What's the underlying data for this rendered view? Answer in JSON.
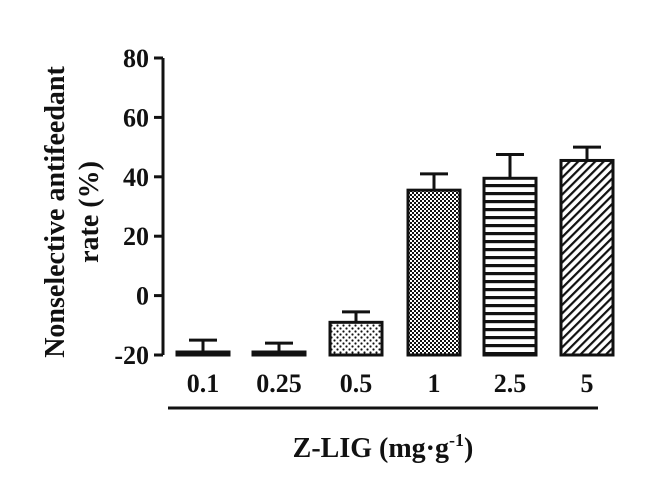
{
  "chart_data": {
    "type": "bar",
    "categories": [
      "0.1",
      "0.25",
      "0.5",
      "1",
      "2.5",
      "5"
    ],
    "values": [
      -19.5,
      -19.0,
      -9.0,
      35.5,
      39.5,
      45.5
    ],
    "error": [
      4.5,
      3.0,
      3.5,
      5.5,
      8.0,
      4.5
    ],
    "ylim": [
      -20,
      80
    ],
    "yticks": [
      -20,
      0,
      20,
      40,
      60,
      80
    ],
    "ytick_labels": [
      "-20",
      "0",
      "20",
      "40",
      "60",
      "80"
    ],
    "ylabel_line1": "Nonselective antifeedant",
    "ylabel_line2": "rate (%)",
    "xlabel_main": "Z-LIG (mg·g",
    "xlabel_sup": "-1",
    "xlabel_close": ")",
    "patterns": [
      "solid-black",
      "solid-black",
      "dots",
      "checker",
      "horizontal-lines",
      "diagonal-lines"
    ],
    "grid": false,
    "legend": "none"
  }
}
